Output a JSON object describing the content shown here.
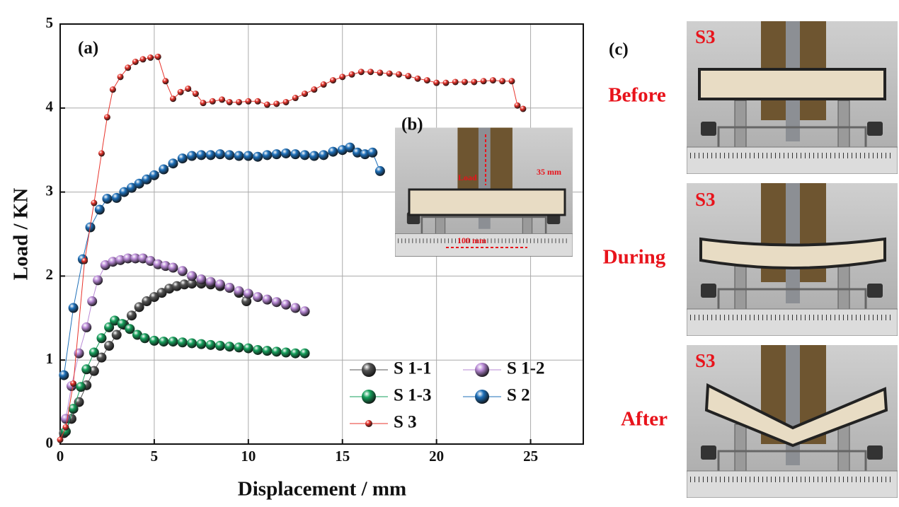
{
  "chart_data": {
    "type": "scatter",
    "panel_label": "(a)",
    "x_label": "Displacement / mm",
    "y_label": "Load / KN",
    "xlim": [
      0,
      27.8
    ],
    "ylim": [
      0,
      5
    ],
    "xticks": [
      0,
      5,
      10,
      15,
      20,
      25
    ],
    "yticks": [
      0,
      1,
      2,
      3,
      4,
      5
    ],
    "grid": true,
    "legend": "lower right",
    "series": [
      {
        "name": "S 1-1",
        "color": "#555555",
        "x": [
          0.2,
          0.6,
          1,
          1.4,
          1.8,
          2.2,
          2.6,
          3,
          3.4,
          3.8,
          4.2,
          4.6,
          5,
          5.4,
          5.8,
          6.2,
          6.6,
          7,
          7.5,
          8,
          8.5,
          9,
          9.5,
          9.9
        ],
        "values": [
          0.13,
          0.3,
          0.5,
          0.7,
          0.87,
          1.03,
          1.17,
          1.3,
          1.42,
          1.53,
          1.63,
          1.7,
          1.75,
          1.8,
          1.85,
          1.88,
          1.9,
          1.91,
          1.91,
          1.9,
          1.88,
          1.86,
          1.8,
          1.7
        ]
      },
      {
        "name": "S 1-2",
        "color": "#b98ad6",
        "x": [
          0.3,
          0.6,
          1,
          1.4,
          1.7,
          2,
          2.4,
          2.8,
          3.2,
          3.6,
          4,
          4.4,
          4.8,
          5.2,
          5.6,
          6,
          6.5,
          7,
          7.5,
          8,
          8.5,
          9,
          9.5,
          10,
          10.5,
          11,
          11.5,
          12,
          12.5,
          13
        ],
        "values": [
          0.3,
          0.69,
          1.08,
          1.39,
          1.7,
          1.95,
          2.13,
          2.17,
          2.19,
          2.21,
          2.21,
          2.21,
          2.18,
          2.14,
          2.12,
          2.1,
          2.06,
          2.0,
          1.96,
          1.93,
          1.9,
          1.86,
          1.82,
          1.79,
          1.75,
          1.72,
          1.69,
          1.66,
          1.62,
          1.58
        ]
      },
      {
        "name": "S 1-3",
        "color": "#16a05c",
        "x": [
          0.3,
          0.7,
          1.1,
          1.4,
          1.8,
          2.2,
          2.6,
          2.9,
          3.3,
          3.7,
          4.1,
          4.5,
          5,
          5.5,
          6,
          6.5,
          7,
          7.5,
          8,
          8.5,
          9,
          9.5,
          10,
          10.5,
          11,
          11.5,
          12,
          12.5,
          13
        ],
        "values": [
          0.15,
          0.42,
          0.68,
          0.89,
          1.09,
          1.26,
          1.39,
          1.47,
          1.43,
          1.37,
          1.3,
          1.26,
          1.23,
          1.22,
          1.22,
          1.21,
          1.2,
          1.19,
          1.18,
          1.17,
          1.16,
          1.15,
          1.14,
          1.12,
          1.11,
          1.1,
          1.09,
          1.08,
          1.08
        ]
      },
      {
        "name": "S 2",
        "color": "#1e6fb8",
        "x": [
          0.2,
          0.7,
          1.2,
          1.6,
          2.1,
          2.5,
          3,
          3.4,
          3.8,
          4.2,
          4.6,
          5,
          5.5,
          6,
          6.5,
          7,
          7.5,
          8,
          8.5,
          9,
          9.5,
          10,
          10.5,
          11,
          11.5,
          12,
          12.5,
          13,
          13.5,
          14,
          14.5,
          15,
          15.4,
          15.8,
          16.2,
          16.6,
          17
        ],
        "values": [
          0.82,
          1.62,
          2.2,
          2.58,
          2.79,
          2.92,
          2.93,
          3,
          3.05,
          3.1,
          3.15,
          3.2,
          3.27,
          3.34,
          3.4,
          3.43,
          3.44,
          3.44,
          3.45,
          3.44,
          3.43,
          3.43,
          3.42,
          3.44,
          3.45,
          3.46,
          3.45,
          3.44,
          3.43,
          3.44,
          3.48,
          3.5,
          3.53,
          3.47,
          3.45,
          3.47,
          3.25
        ]
      },
      {
        "name": "S 3",
        "color": "#e8342c",
        "x": [
          0,
          0.3,
          0.7,
          1.3,
          1.8,
          2.2,
          2.5,
          2.8,
          3.2,
          3.6,
          4,
          4.4,
          4.8,
          5.2,
          5.6,
          6,
          6.4,
          6.8,
          7.2,
          7.6,
          8.1,
          8.6,
          9,
          9.5,
          10,
          10.5,
          11,
          11.5,
          12,
          12.5,
          13,
          13.5,
          14,
          14.5,
          15,
          15.5,
          16,
          16.5,
          17,
          17.5,
          18,
          18.5,
          19,
          19.5,
          20,
          20.5,
          21,
          21.5,
          22,
          22.5,
          23,
          23.5,
          24,
          24.3,
          24.6
        ],
        "values": [
          0.05,
          0.2,
          0.72,
          2.18,
          2.87,
          3.46,
          3.89,
          4.22,
          4.37,
          4.48,
          4.55,
          4.58,
          4.6,
          4.61,
          4.32,
          4.11,
          4.19,
          4.23,
          4.17,
          4.06,
          4.08,
          4.1,
          4.07,
          4.07,
          4.08,
          4.08,
          4.04,
          4.05,
          4.07,
          4.12,
          4.17,
          4.22,
          4.28,
          4.33,
          4.37,
          4.4,
          4.43,
          4.43,
          4.42,
          4.41,
          4.4,
          4.38,
          4.35,
          4.33,
          4.3,
          4.3,
          4.31,
          4.31,
          4.31,
          4.32,
          4.33,
          4.32,
          4.32,
          4.03,
          3.99
        ]
      }
    ]
  },
  "inset": {
    "label": "(b)",
    "load": "Load",
    "depth": "35 mm",
    "span": "100 mm"
  },
  "photos": {
    "label": "(c)",
    "items": [
      {
        "tag": "S3",
        "caption": "Before"
      },
      {
        "tag": "S3",
        "caption": "During"
      },
      {
        "tag": "S3",
        "caption": "After"
      }
    ]
  }
}
